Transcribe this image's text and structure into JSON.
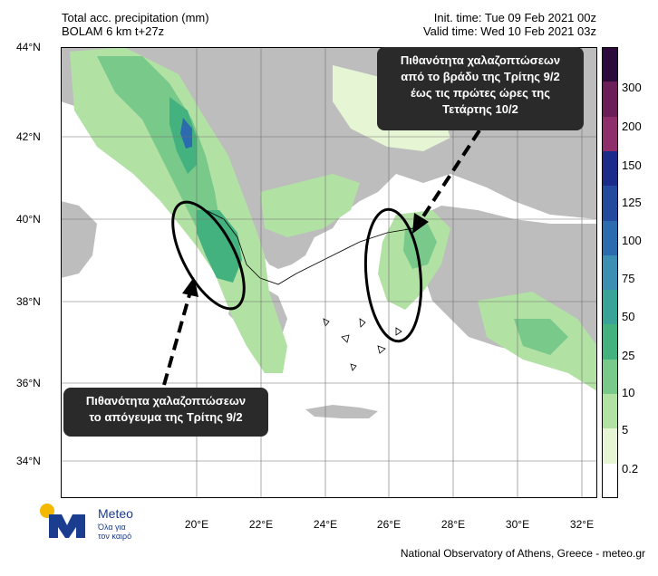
{
  "header": {
    "title": "Total acc. precipitation (mm)",
    "model": "BOLAM 6 km t+27z",
    "init_time": "Init. time: Tue 09 Feb 2021 00z",
    "valid_time": "Valid time: Wed 10 Feb 2021 03z"
  },
  "axes": {
    "lat": [
      "44°N",
      "42°N",
      "40°N",
      "38°N",
      "36°N",
      "34°N"
    ],
    "lon": [
      "20°E",
      "22°E",
      "24°E",
      "26°E",
      "28°E",
      "30°E",
      "32°E"
    ]
  },
  "colorbar": {
    "labels": [
      "300",
      "200",
      "150",
      "125",
      "100",
      "75",
      "50",
      "25",
      "10",
      "5",
      "0.2"
    ],
    "colors": [
      "#2d0a3c",
      "#6b1e58",
      "#8e2f6c",
      "#1b2b8a",
      "#234a9c",
      "#2c6cae",
      "#3a8fb2",
      "#3aa398",
      "#43b27f",
      "#78c98a",
      "#b2e2a3",
      "#e6f5d3",
      "#ffffff"
    ]
  },
  "callouts": {
    "right": [
      "Πιθανότητα χαλαζοπτώσεων",
      "από το  βράδυ της Τρίτης 9/2",
      "έως τις πρώτες ώρες της",
      "Τετάρτης 10/2"
    ],
    "left": [
      "Πιθανότητα χαλαζοπτώσεων",
      "το απόγευμα της Τρίτης 9/2"
    ]
  },
  "logo": {
    "name": "Meteo",
    "tagline_1": "Όλα για",
    "tagline_2": "τον καιρό"
  },
  "footer": "National Observatory of Athens, Greece - meteo.gr"
}
